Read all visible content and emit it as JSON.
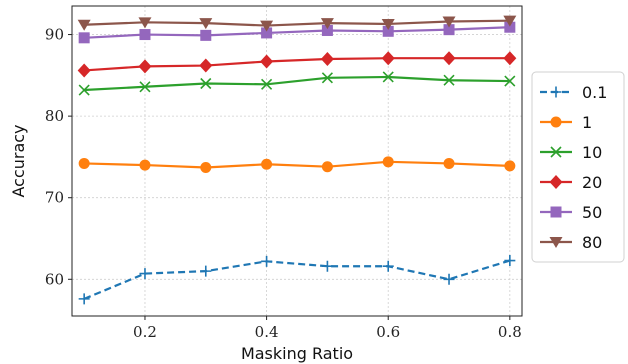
{
  "chart_data": {
    "type": "line",
    "xlabel": "Masking Ratio",
    "ylabel": "Accuracy",
    "xlim": [
      0.08,
      0.82
    ],
    "ylim": [
      55.5,
      93.5
    ],
    "xticks": [
      0.2,
      0.4,
      0.6,
      0.8
    ],
    "xtick_labels": [
      "0.2",
      "0.4",
      "0.6",
      "0.8"
    ],
    "yticks": [
      60,
      70,
      80,
      90
    ],
    "ytick_labels": [
      "60",
      "70",
      "80",
      "90"
    ],
    "grid": true,
    "legend_position": "right",
    "x": [
      0.1,
      0.2,
      0.3,
      0.4,
      0.5,
      0.6,
      0.7,
      0.8
    ],
    "series": [
      {
        "name": "0.1",
        "color": "#1f77b4",
        "marker": "plus",
        "dashed": true,
        "values": [
          57.6,
          60.7,
          61.0,
          62.2,
          61.6,
          61.6,
          60.0,
          62.3
        ]
      },
      {
        "name": "1",
        "color": "#ff7f0e",
        "marker": "circle",
        "dashed": false,
        "values": [
          74.2,
          74.0,
          73.7,
          74.1,
          73.8,
          74.4,
          74.2,
          73.9
        ]
      },
      {
        "name": "10",
        "color": "#2ca02c",
        "marker": "x",
        "dashed": false,
        "values": [
          83.2,
          83.6,
          84.0,
          83.9,
          84.7,
          84.8,
          84.4,
          84.3
        ]
      },
      {
        "name": "20",
        "color": "#d62728",
        "marker": "diamond",
        "dashed": false,
        "values": [
          85.6,
          86.1,
          86.2,
          86.7,
          87.0,
          87.1,
          87.1,
          87.1
        ]
      },
      {
        "name": "50",
        "color": "#9467bd",
        "marker": "square",
        "dashed": false,
        "values": [
          89.6,
          90.0,
          89.9,
          90.2,
          90.5,
          90.4,
          90.6,
          90.9
        ]
      },
      {
        "name": "80",
        "color": "#8c564b",
        "marker": "triangle-down",
        "dashed": false,
        "values": [
          91.2,
          91.5,
          91.4,
          91.1,
          91.4,
          91.3,
          91.6,
          91.7
        ]
      }
    ]
  }
}
